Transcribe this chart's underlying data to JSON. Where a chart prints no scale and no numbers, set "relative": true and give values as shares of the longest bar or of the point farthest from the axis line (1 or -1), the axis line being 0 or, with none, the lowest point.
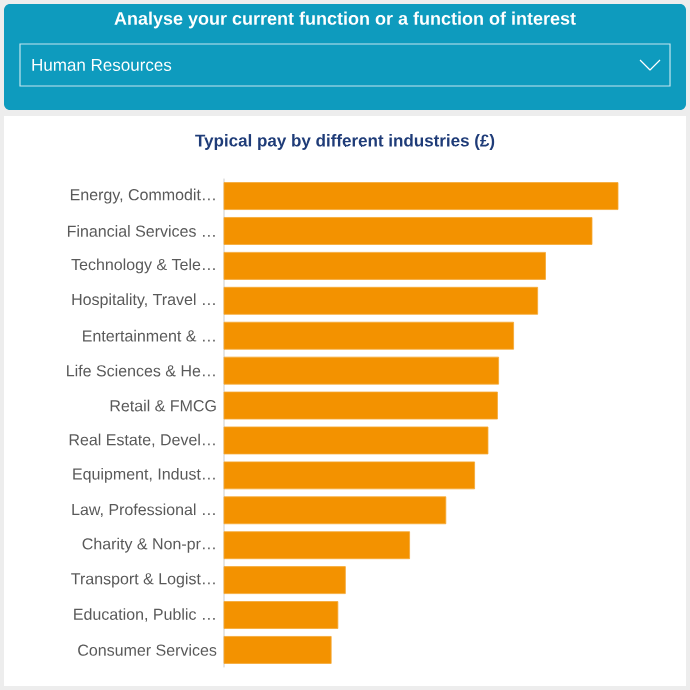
{
  "chart_data": {
    "type": "bar",
    "orientation": "horizontal",
    "relative": true,
    "title": "Typical pay by different industries (£)",
    "annotations": [
      "Analyse your current function or a function of interest",
      "Human Resources"
    ],
    "categories": [
      "Energy, Commodit…",
      "Financial Services …",
      "Technology & Tele…",
      "Hospitality, Travel …",
      "Entertainment & …",
      "Life Sciences & He…",
      "Retail & FMCG",
      "Real Estate, Devel…",
      "Equipment, Indust…",
      "Law, Professional …",
      "Charity & Non-pr…",
      "Transport & Logist…",
      "Education, Public …",
      "Consumer Services"
    ],
    "values": [
      1,
      0.934,
      0.816,
      0.796,
      0.735,
      0.697,
      0.694,
      0.67,
      0.636,
      0.563,
      0.471,
      0.308,
      0.289,
      0.272
    ],
    "color": "#f39200"
  }
}
